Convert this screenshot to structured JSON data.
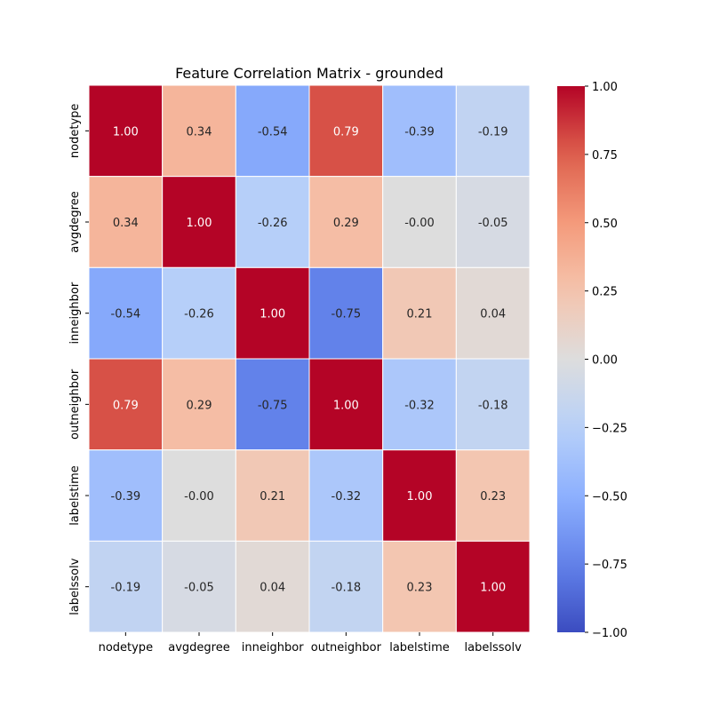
{
  "chart_data": {
    "type": "heatmap",
    "title": "Feature Correlation Matrix - grounded",
    "xlabel": "",
    "ylabel": "",
    "row_labels": [
      "nodetype",
      "avgdegree",
      "inneighbor",
      "outneighbor",
      "labelstime",
      "labelssolv"
    ],
    "col_labels": [
      "nodetype",
      "avgdegree",
      "inneighbor",
      "outneighbor",
      "labelstime",
      "labelssolv"
    ],
    "values": [
      [
        1.0,
        0.34,
        -0.54,
        0.79,
        -0.39,
        -0.19
      ],
      [
        0.34,
        1.0,
        -0.26,
        0.29,
        -0.0,
        -0.05
      ],
      [
        -0.54,
        -0.26,
        1.0,
        -0.75,
        0.21,
        0.04
      ],
      [
        0.79,
        0.29,
        -0.75,
        1.0,
        -0.32,
        -0.18
      ],
      [
        -0.39,
        -0.0,
        0.21,
        -0.32,
        1.0,
        0.23
      ],
      [
        -0.19,
        -0.05,
        0.04,
        -0.18,
        0.23,
        1.0
      ]
    ],
    "value_labels": [
      [
        "1.00",
        "0.34",
        "-0.54",
        "0.79",
        "-0.39",
        "-0.19"
      ],
      [
        "0.34",
        "1.00",
        "-0.26",
        "0.29",
        "-0.00",
        "-0.05"
      ],
      [
        "-0.54",
        "-0.26",
        "1.00",
        "-0.75",
        "0.21",
        "0.04"
      ],
      [
        "0.79",
        "0.29",
        "-0.75",
        "1.00",
        "-0.32",
        "-0.18"
      ],
      [
        "-0.39",
        "-0.00",
        "0.21",
        "-0.32",
        "1.00",
        "0.23"
      ],
      [
        "-0.19",
        "-0.05",
        "0.04",
        "-0.18",
        "0.23",
        "1.00"
      ]
    ],
    "colormap": "coolwarm",
    "vmin": -1.0,
    "vmax": 1.0,
    "colorbar": {
      "ticks": [
        1.0,
        0.75,
        0.5,
        0.25,
        0.0,
        -0.25,
        -0.5,
        -0.75,
        -1.0
      ],
      "tick_labels": [
        "1.00",
        "0.75",
        "0.50",
        "0.25",
        "0.00",
        "−0.25",
        "−0.50",
        "−0.75",
        "−1.00"
      ]
    },
    "grid": false,
    "cell_border_color": "#ffffff"
  }
}
